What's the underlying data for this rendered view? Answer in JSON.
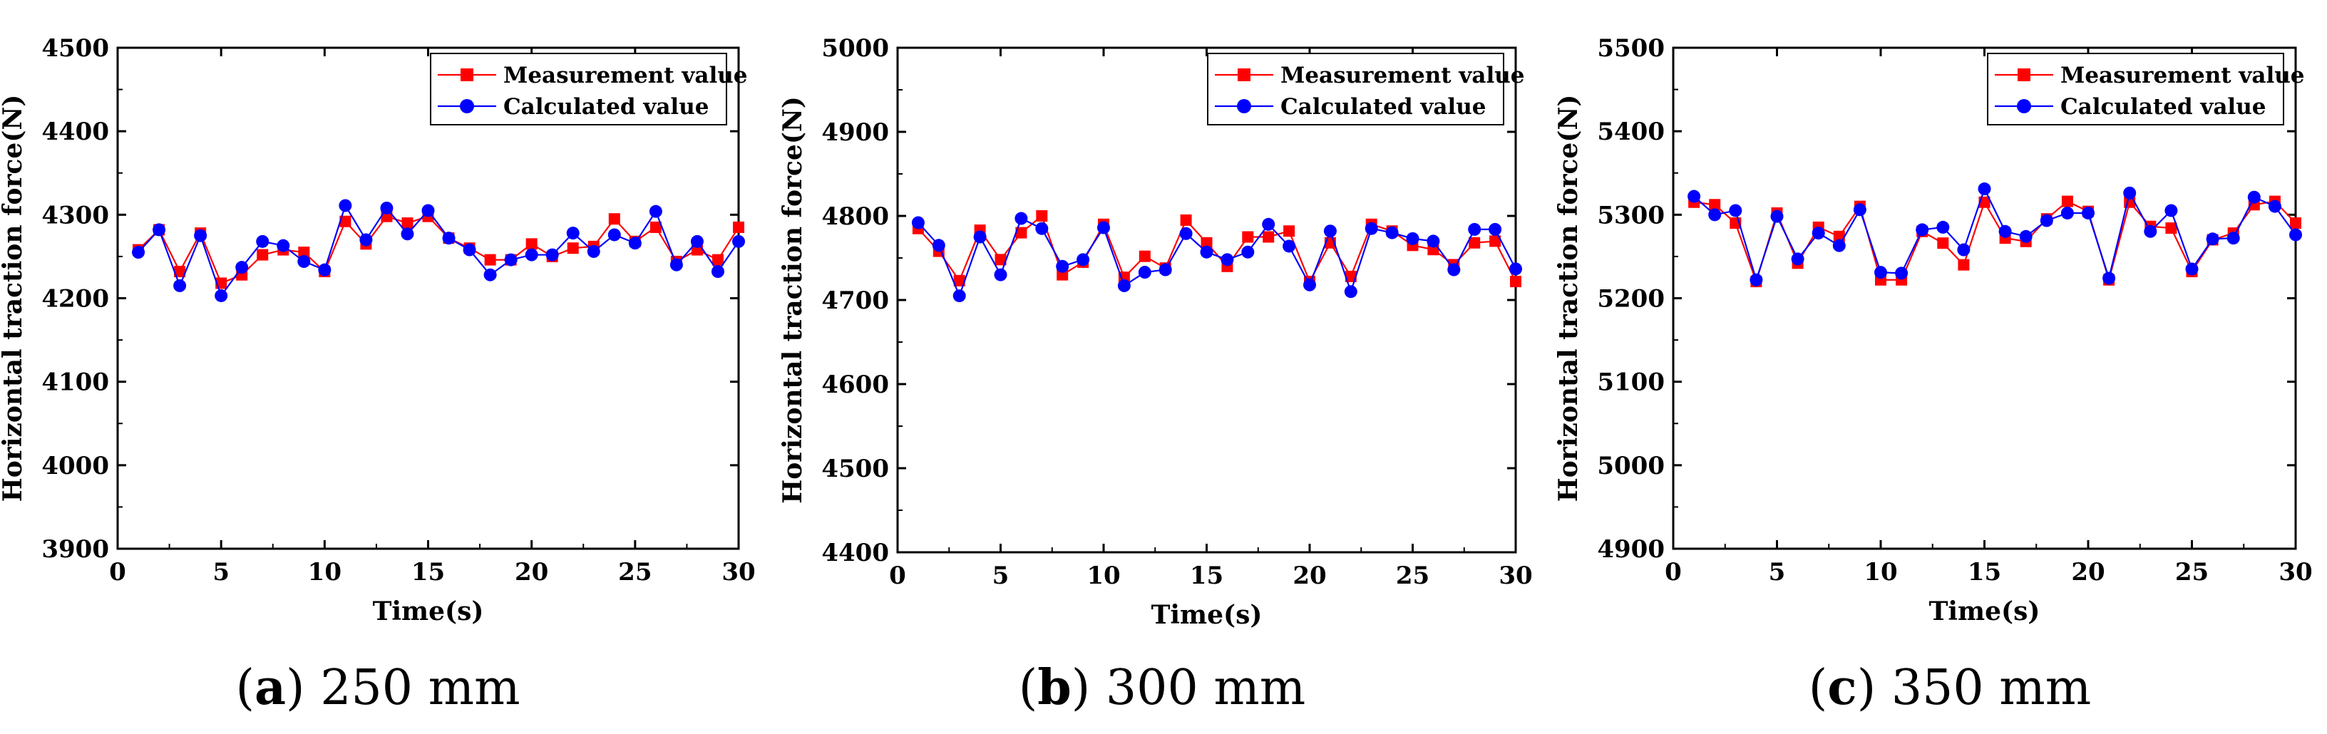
{
  "chart_data": [
    {
      "type": "line",
      "caption_letter": "a",
      "caption_text": "250 mm",
      "xlabel": "Time(s)",
      "ylabel": "Horizontal traction force(N)",
      "xlim": [
        0,
        30
      ],
      "ylim": [
        3900,
        4500
      ],
      "xticks": [
        0,
        5,
        10,
        15,
        20,
        25,
        30
      ],
      "yticks": [
        3900,
        4000,
        4100,
        4200,
        4300,
        4400,
        4500
      ],
      "legend_position": "top-right",
      "x": [
        1,
        2,
        3,
        4,
        5,
        6,
        7,
        8,
        9,
        10,
        11,
        12,
        13,
        14,
        15,
        16,
        17,
        18,
        19,
        20,
        21,
        22,
        23,
        24,
        25,
        26,
        27,
        28,
        29,
        30
      ],
      "series": [
        {
          "name": "Measurement value",
          "color": "#ff0000",
          "marker": "square",
          "values": [
            4258,
            4282,
            4232,
            4278,
            4218,
            4228,
            4252,
            4258,
            4255,
            4232,
            4292,
            4265,
            4298,
            4290,
            4298,
            4272,
            4260,
            4246,
            4246,
            4265,
            4250,
            4260,
            4262,
            4295,
            4268,
            4285,
            4244,
            4258,
            4246,
            4285
          ]
        },
        {
          "name": "Calculated value",
          "color": "#0000ff",
          "marker": "circle",
          "values": [
            4255,
            4282,
            4215,
            4275,
            4203,
            4237,
            4268,
            4263,
            4244,
            4234,
            4311,
            4270,
            4308,
            4277,
            4305,
            4272,
            4258,
            4228,
            4246,
            4252,
            4252,
            4278,
            4256,
            4276,
            4266,
            4304,
            4240,
            4268,
            4232,
            4268
          ]
        }
      ]
    },
    {
      "type": "line",
      "caption_letter": "b",
      "caption_text": "300 mm",
      "xlabel": "Time(s)",
      "ylabel": "Horizontal traction force(N)",
      "xlim": [
        0,
        30
      ],
      "ylim": [
        4400,
        5000
      ],
      "xticks": [
        0,
        5,
        10,
        15,
        20,
        25,
        30
      ],
      "yticks": [
        4400,
        4500,
        4600,
        4700,
        4800,
        4900,
        5000
      ],
      "legend_position": "top-right",
      "x": [
        1,
        2,
        3,
        4,
        5,
        6,
        7,
        8,
        9,
        10,
        11,
        12,
        13,
        14,
        15,
        16,
        17,
        18,
        19,
        20,
        21,
        22,
        23,
        24,
        25,
        26,
        27,
        28,
        29,
        30
      ],
      "series": [
        {
          "name": "Measurement value",
          "color": "#ff0000",
          "marker": "square",
          "values": [
            4785,
            4758,
            4723,
            4783,
            4748,
            4780,
            4800,
            4730,
            4745,
            4790,
            4727,
            4752,
            4738,
            4795,
            4768,
            4740,
            4775,
            4775,
            4782,
            4722,
            4768,
            4728,
            4790,
            4782,
            4765,
            4760,
            4742,
            4768,
            4770,
            4722
          ]
        },
        {
          "name": "Calculated value",
          "color": "#0000ff",
          "marker": "circle",
          "values": [
            4792,
            4765,
            4705,
            4775,
            4730,
            4797,
            4785,
            4740,
            4748,
            4786,
            4717,
            4733,
            4736,
            4779,
            4757,
            4748,
            4757,
            4790,
            4764,
            4718,
            4782,
            4710,
            4785,
            4780,
            4773,
            4770,
            4736,
            4784,
            4784,
            4737
          ]
        }
      ]
    },
    {
      "type": "line",
      "caption_letter": "c",
      "caption_text": "350 mm",
      "xlabel": "Time(s)",
      "ylabel": "Horizontal traction force(N)",
      "xlim": [
        0,
        30
      ],
      "ylim": [
        4900,
        5500
      ],
      "xticks": [
        0,
        5,
        10,
        15,
        20,
        25,
        30
      ],
      "yticks": [
        4900,
        5000,
        5100,
        5200,
        5300,
        5400,
        5500
      ],
      "legend_position": "top-right",
      "x": [
        1,
        2,
        3,
        4,
        5,
        6,
        7,
        8,
        9,
        10,
        11,
        12,
        13,
        14,
        15,
        16,
        17,
        18,
        19,
        20,
        21,
        22,
        23,
        24,
        25,
        26,
        27,
        28,
        29,
        30
      ],
      "series": [
        {
          "name": "Measurement value",
          "color": "#ff0000",
          "marker": "square",
          "values": [
            5315,
            5312,
            5290,
            5220,
            5302,
            5242,
            5285,
            5274,
            5310,
            5222,
            5222,
            5280,
            5266,
            5240,
            5315,
            5272,
            5268,
            5295,
            5316,
            5304,
            5222,
            5315,
            5286,
            5284,
            5232,
            5270,
            5278,
            5312,
            5316,
            5290
          ]
        },
        {
          "name": "Calculated value",
          "color": "#0000ff",
          "marker": "circle",
          "values": [
            5322,
            5300,
            5305,
            5222,
            5298,
            5247,
            5278,
            5263,
            5306,
            5231,
            5230,
            5282,
            5285,
            5258,
            5331,
            5280,
            5274,
            5293,
            5302,
            5302,
            5224,
            5326,
            5280,
            5305,
            5235,
            5271,
            5272,
            5321,
            5310,
            5276
          ]
        }
      ]
    }
  ]
}
